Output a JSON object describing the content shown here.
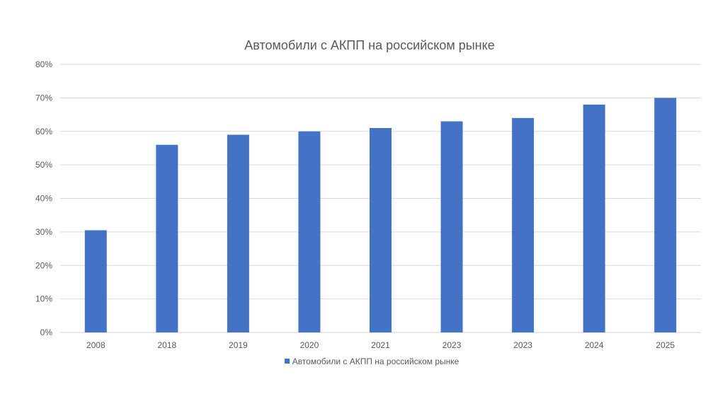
{
  "chart_data": {
    "type": "bar",
    "title": "Автомобили с АКПП на российском рынке",
    "categories": [
      "2008",
      "2018",
      "2019",
      "2020",
      "2021",
      "2023",
      "2023",
      "2024",
      "2025"
    ],
    "series": [
      {
        "name": "Автомобили с АКПП на российском рынке",
        "values": [
          30.5,
          56,
          59,
          60,
          61,
          63,
          64,
          68,
          70
        ],
        "color": "#4472C4"
      }
    ],
    "ylim": [
      0,
      80
    ],
    "yticks": [
      "0%",
      "10%",
      "20%",
      "30%",
      "40%",
      "50%",
      "60%",
      "70%",
      "80%"
    ],
    "grid": true,
    "legend_position": "bottom"
  }
}
